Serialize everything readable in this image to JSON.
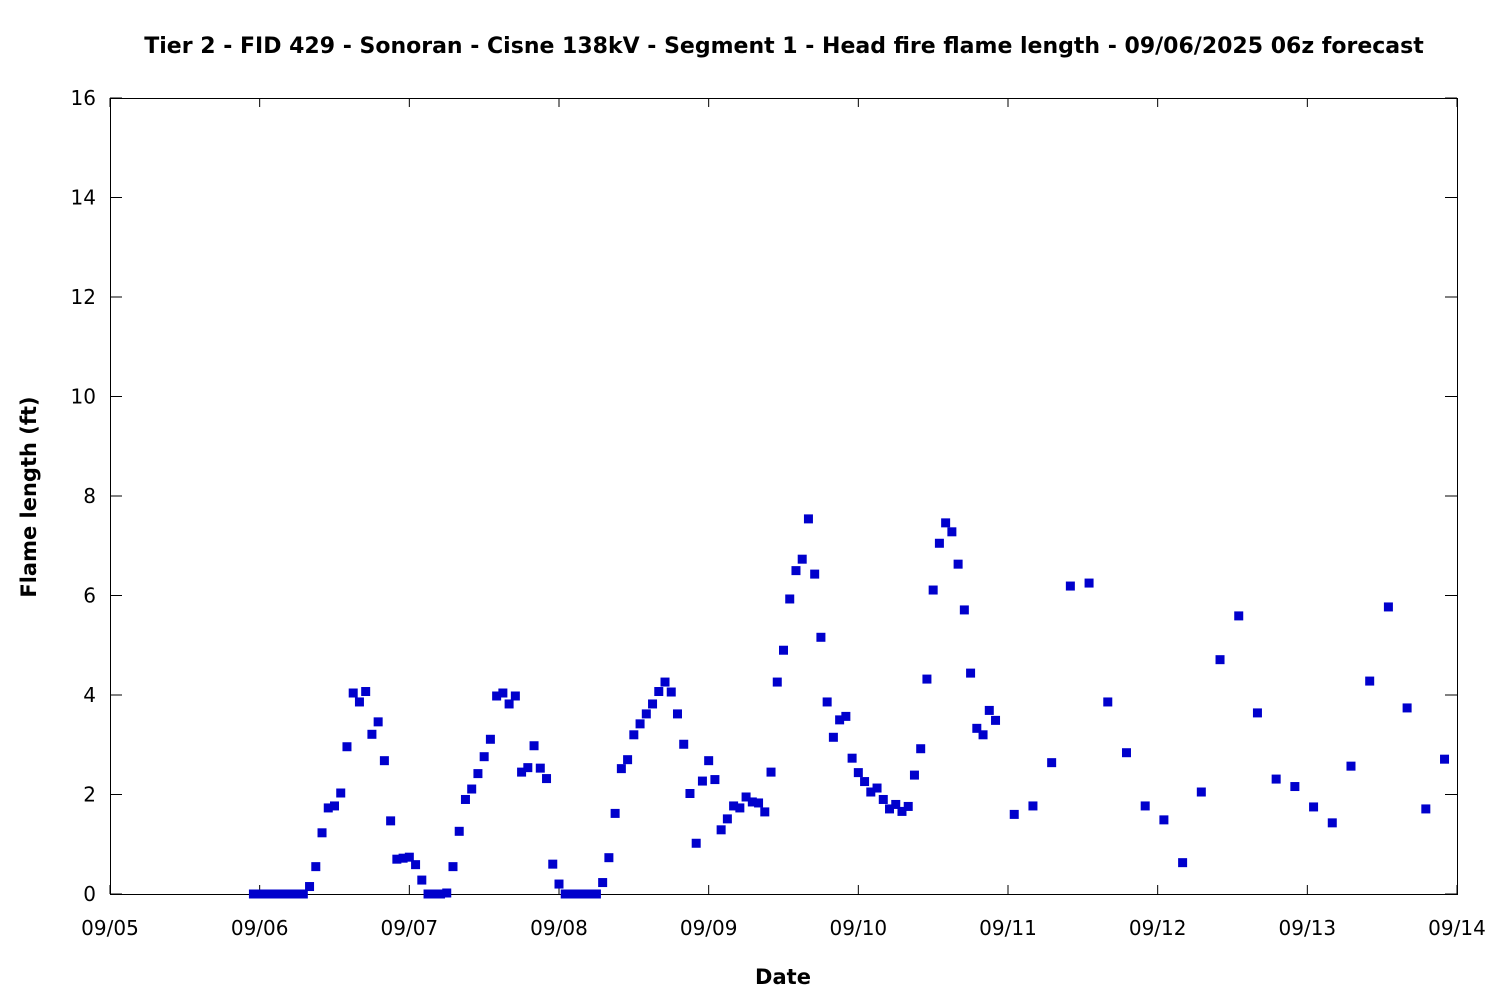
{
  "chart_data": {
    "type": "scatter",
    "title": "Tier 2 - FID 429 - Sonoran - Cisne 138kV - Segment 1 - Head fire flame length - 09/06/2025 06z forecast",
    "xlabel": "Date",
    "ylabel": "Flame length (ft)",
    "x_tick_labels": [
      "09/05",
      "09/06",
      "09/07",
      "09/08",
      "09/09",
      "09/10",
      "09/11",
      "09/12",
      "09/13",
      "09/14"
    ],
    "y_tick_labels": [
      "0",
      "2",
      "4",
      "6",
      "8",
      "10",
      "12",
      "14",
      "16"
    ],
    "xlim": [
      "2025-09-05 00:00",
      "2025-09-14 00:00"
    ],
    "ylim": [
      0,
      16
    ],
    "grid": false,
    "legend": "none",
    "marker_color": "#0000cc",
    "series": [
      {
        "points": [
          [
            "2025-09-05 23:00",
            0
          ],
          [
            "2025-09-06 00:00",
            0
          ],
          [
            "2025-09-06 01:00",
            0
          ],
          [
            "2025-09-06 02:00",
            0
          ],
          [
            "2025-09-06 03:00",
            0
          ],
          [
            "2025-09-06 04:00",
            0
          ],
          [
            "2025-09-06 05:00",
            0
          ],
          [
            "2025-09-06 06:00",
            0
          ],
          [
            "2025-09-06 07:00",
            0
          ],
          [
            "2025-09-06 08:00",
            0.15
          ],
          [
            "2025-09-06 09:00",
            0.55
          ],
          [
            "2025-09-06 10:00",
            1.23
          ],
          [
            "2025-09-06 11:00",
            1.73
          ],
          [
            "2025-09-06 12:00",
            1.77
          ],
          [
            "2025-09-06 13:00",
            2.03
          ],
          [
            "2025-09-06 14:00",
            2.96
          ],
          [
            "2025-09-06 15:00",
            4.04
          ],
          [
            "2025-09-06 16:00",
            3.86
          ],
          [
            "2025-09-06 17:00",
            4.07
          ],
          [
            "2025-09-06 18:00",
            3.21
          ],
          [
            "2025-09-06 19:00",
            3.46
          ],
          [
            "2025-09-06 20:00",
            2.68
          ],
          [
            "2025-09-06 21:00",
            1.47
          ],
          [
            "2025-09-06 22:00",
            0.7
          ],
          [
            "2025-09-06 23:00",
            0.72
          ],
          [
            "2025-09-07 00:00",
            0.74
          ],
          [
            "2025-09-07 01:00",
            0.59
          ],
          [
            "2025-09-07 02:00",
            0.28
          ],
          [
            "2025-09-07 03:00",
            0
          ],
          [
            "2025-09-07 04:00",
            0
          ],
          [
            "2025-09-07 05:00",
            0
          ],
          [
            "2025-09-07 06:00",
            0.02
          ],
          [
            "2025-09-07 07:00",
            0.55
          ],
          [
            "2025-09-07 08:00",
            1.26
          ],
          [
            "2025-09-07 09:00",
            1.9
          ],
          [
            "2025-09-07 10:00",
            2.11
          ],
          [
            "2025-09-07 11:00",
            2.42
          ],
          [
            "2025-09-07 12:00",
            2.76
          ],
          [
            "2025-09-07 13:00",
            3.11
          ],
          [
            "2025-09-07 14:00",
            3.98
          ],
          [
            "2025-09-07 15:00",
            4.04
          ],
          [
            "2025-09-07 16:00",
            3.82
          ],
          [
            "2025-09-07 17:00",
            3.98
          ],
          [
            "2025-09-07 18:00",
            2.45
          ],
          [
            "2025-09-07 19:00",
            2.54
          ],
          [
            "2025-09-07 20:00",
            2.98
          ],
          [
            "2025-09-07 21:00",
            2.53
          ],
          [
            "2025-09-07 22:00",
            2.32
          ],
          [
            "2025-09-07 23:00",
            0.6
          ],
          [
            "2025-09-08 00:00",
            0.2
          ],
          [
            "2025-09-08 01:00",
            0
          ],
          [
            "2025-09-08 02:00",
            0
          ],
          [
            "2025-09-08 03:00",
            0
          ],
          [
            "2025-09-08 04:00",
            0
          ],
          [
            "2025-09-08 05:00",
            0
          ],
          [
            "2025-09-08 06:00",
            0
          ],
          [
            "2025-09-08 07:00",
            0.23
          ],
          [
            "2025-09-08 08:00",
            0.73
          ],
          [
            "2025-09-08 09:00",
            1.62
          ],
          [
            "2025-09-08 10:00",
            2.52
          ],
          [
            "2025-09-08 11:00",
            2.7
          ],
          [
            "2025-09-08 12:00",
            3.2
          ],
          [
            "2025-09-08 13:00",
            3.42
          ],
          [
            "2025-09-08 14:00",
            3.62
          ],
          [
            "2025-09-08 15:00",
            3.82
          ],
          [
            "2025-09-08 16:00",
            4.07
          ],
          [
            "2025-09-08 17:00",
            4.26
          ],
          [
            "2025-09-08 18:00",
            4.06
          ],
          [
            "2025-09-08 19:00",
            3.62
          ],
          [
            "2025-09-08 20:00",
            3.01
          ],
          [
            "2025-09-08 21:00",
            2.02
          ],
          [
            "2025-09-08 22:00",
            1.02
          ],
          [
            "2025-09-08 23:00",
            2.27
          ],
          [
            "2025-09-09 00:00",
            2.68
          ],
          [
            "2025-09-09 01:00",
            2.3
          ],
          [
            "2025-09-09 02:00",
            1.29
          ],
          [
            "2025-09-09 03:00",
            1.51
          ],
          [
            "2025-09-09 04:00",
            1.77
          ],
          [
            "2025-09-09 05:00",
            1.73
          ],
          [
            "2025-09-09 06:00",
            1.95
          ],
          [
            "2025-09-09 07:00",
            1.85
          ],
          [
            "2025-09-09 08:00",
            1.83
          ],
          [
            "2025-09-09 09:00",
            1.65
          ],
          [
            "2025-09-09 10:00",
            2.45
          ],
          [
            "2025-09-09 11:00",
            4.26
          ],
          [
            "2025-09-09 12:00",
            4.9
          ],
          [
            "2025-09-09 13:00",
            5.93
          ],
          [
            "2025-09-09 14:00",
            6.5
          ],
          [
            "2025-09-09 15:00",
            6.73
          ],
          [
            "2025-09-09 16:00",
            7.54
          ],
          [
            "2025-09-09 17:00",
            6.43
          ],
          [
            "2025-09-09 18:00",
            5.16
          ],
          [
            "2025-09-09 19:00",
            3.86
          ],
          [
            "2025-09-09 20:00",
            3.15
          ],
          [
            "2025-09-09 21:00",
            3.5
          ],
          [
            "2025-09-09 22:00",
            3.57
          ],
          [
            "2025-09-09 23:00",
            2.73
          ],
          [
            "2025-09-10 00:00",
            2.44
          ],
          [
            "2025-09-10 01:00",
            2.26
          ],
          [
            "2025-09-10 02:00",
            2.05
          ],
          [
            "2025-09-10 03:00",
            2.13
          ],
          [
            "2025-09-10 04:00",
            1.9
          ],
          [
            "2025-09-10 05:00",
            1.71
          ],
          [
            "2025-09-10 06:00",
            1.8
          ],
          [
            "2025-09-10 07:00",
            1.66
          ],
          [
            "2025-09-10 08:00",
            1.76
          ],
          [
            "2025-09-10 09:00",
            2.39
          ],
          [
            "2025-09-10 10:00",
            2.92
          ],
          [
            "2025-09-10 11:00",
            4.32
          ],
          [
            "2025-09-10 12:00",
            6.11
          ],
          [
            "2025-09-10 13:00",
            7.05
          ],
          [
            "2025-09-10 14:00",
            7.46
          ],
          [
            "2025-09-10 15:00",
            7.28
          ],
          [
            "2025-09-10 16:00",
            6.63
          ],
          [
            "2025-09-10 17:00",
            5.71
          ],
          [
            "2025-09-10 18:00",
            4.44
          ],
          [
            "2025-09-10 19:00",
            3.33
          ],
          [
            "2025-09-10 20:00",
            3.2
          ],
          [
            "2025-09-10 21:00",
            3.69
          ],
          [
            "2025-09-10 22:00",
            3.49
          ],
          [
            "2025-09-11 01:00",
            1.6
          ],
          [
            "2025-09-11 04:00",
            1.77
          ],
          [
            "2025-09-11 07:00",
            2.64
          ],
          [
            "2025-09-11 10:00",
            6.19
          ],
          [
            "2025-09-11 13:00",
            6.25
          ],
          [
            "2025-09-11 16:00",
            3.86
          ],
          [
            "2025-09-11 19:00",
            2.84
          ],
          [
            "2025-09-11 22:00",
            1.77
          ],
          [
            "2025-09-12 01:00",
            1.49
          ],
          [
            "2025-09-12 04:00",
            0.63
          ],
          [
            "2025-09-12 07:00",
            2.05
          ],
          [
            "2025-09-12 10:00",
            4.71
          ],
          [
            "2025-09-12 13:00",
            5.59
          ],
          [
            "2025-09-12 16:00",
            3.64
          ],
          [
            "2025-09-12 19:00",
            2.31
          ],
          [
            "2025-09-12 22:00",
            2.16
          ],
          [
            "2025-09-13 01:00",
            1.75
          ],
          [
            "2025-09-13 04:00",
            1.43
          ],
          [
            "2025-09-13 07:00",
            2.57
          ],
          [
            "2025-09-13 10:00",
            4.28
          ],
          [
            "2025-09-13 13:00",
            5.77
          ],
          [
            "2025-09-13 16:00",
            3.74
          ],
          [
            "2025-09-13 19:00",
            1.71
          ],
          [
            "2025-09-13 22:00",
            2.71
          ]
        ]
      }
    ]
  }
}
